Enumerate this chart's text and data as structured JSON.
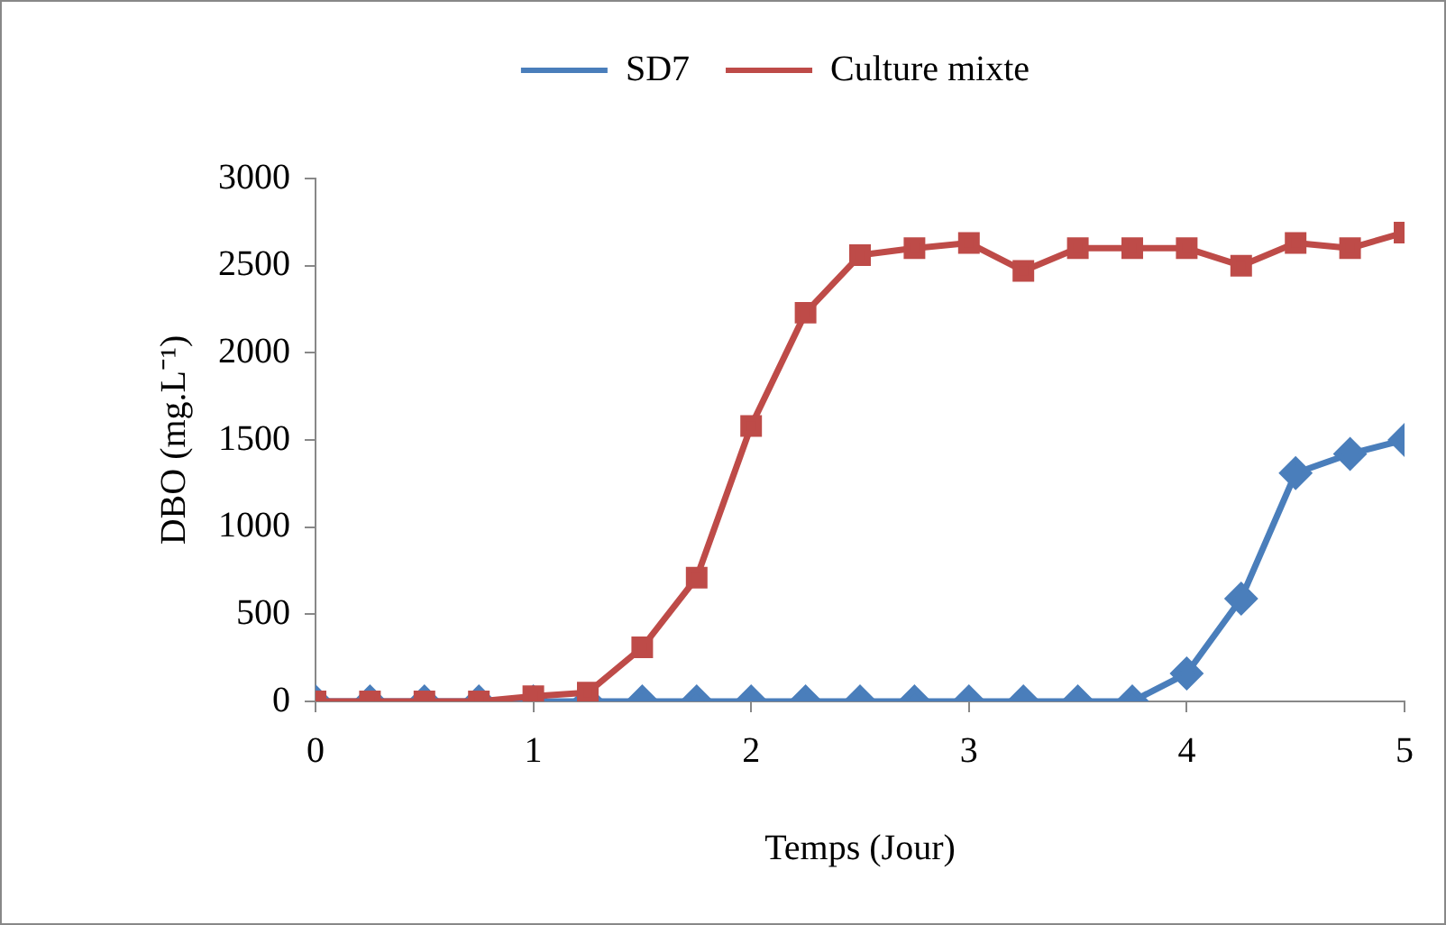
{
  "chart_data": {
    "type": "line",
    "xlabel": "Temps (Jour)",
    "ylabel": "DBO (mg.L⁻¹)",
    "x": [
      0,
      0.25,
      0.5,
      0.75,
      1,
      1.25,
      1.5,
      1.75,
      2,
      2.25,
      2.5,
      2.75,
      3,
      3.25,
      3.5,
      3.75,
      4,
      4.25,
      4.5,
      4.75,
      5
    ],
    "series": [
      {
        "name": "SD7",
        "color": "#4a7ebb",
        "marker": "diamond",
        "values": [
          0,
          0,
          0,
          0,
          0,
          0,
          0,
          0,
          0,
          0,
          0,
          0,
          0,
          0,
          0,
          0,
          160,
          590,
          1310,
          1420,
          1500
        ]
      },
      {
        "name": "Culture mixte",
        "color": "#be4b48",
        "marker": "square",
        "values": [
          0,
          0,
          0,
          0,
          30,
          50,
          310,
          710,
          1580,
          2230,
          2560,
          2600,
          2630,
          2470,
          2600,
          2600,
          2600,
          2500,
          2630,
          2600,
          2690
        ]
      }
    ],
    "xlim": [
      0,
      5
    ],
    "xticks": [
      0,
      1,
      2,
      3,
      4,
      5
    ],
    "ylim": [
      0,
      3000
    ],
    "yticks": [
      0,
      500,
      1000,
      1500,
      2000,
      2500,
      3000
    ],
    "grid": false,
    "legend": "top",
    "line_style": "solid"
  }
}
